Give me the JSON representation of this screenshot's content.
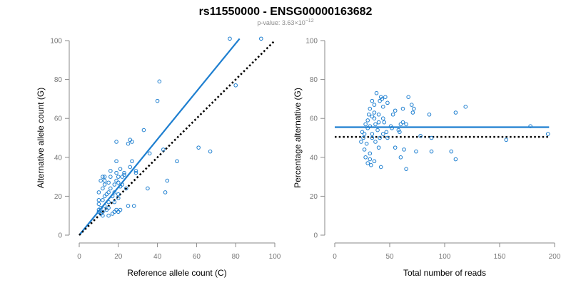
{
  "figure": {
    "title": "rs11550000 - ENSG00000163682",
    "subtitle": "p-value: 3.63×10",
    "subtitle_exponent": "−12"
  },
  "colors": {
    "series": "#1e7fd0",
    "reference_line": "#000000",
    "axis": "#8a8a8a"
  },
  "chart_data": [
    {
      "type": "scatter",
      "xlabel": "Reference allele count (C)",
      "ylabel": "Alternative allele count (G)",
      "xlim": [
        0,
        100
      ],
      "ylim": [
        0,
        100
      ],
      "xticks": [
        0,
        20,
        40,
        60,
        80,
        100
      ],
      "yticks": [
        0,
        20,
        40,
        60,
        80,
        100
      ],
      "grid": false,
      "lines": [
        {
          "style": "solid",
          "color": "#1e7fd0",
          "from": [
            0,
            0
          ],
          "to": [
            82,
            101
          ]
        },
        {
          "style": "dotted",
          "color": "#000000",
          "from": [
            0,
            0
          ],
          "to": [
            100,
            100
          ]
        }
      ],
      "points": [
        [
          77,
          101
        ],
        [
          93,
          101
        ],
        [
          41,
          79
        ],
        [
          40,
          69
        ],
        [
          80,
          77
        ],
        [
          33,
          54
        ],
        [
          26,
          49
        ],
        [
          27,
          48
        ],
        [
          25,
          47
        ],
        [
          19,
          48
        ],
        [
          61,
          45
        ],
        [
          67,
          43
        ],
        [
          43,
          44
        ],
        [
          36,
          42
        ],
        [
          50,
          38
        ],
        [
          19,
          38
        ],
        [
          27,
          38
        ],
        [
          26,
          35
        ],
        [
          29,
          33
        ],
        [
          29,
          32
        ],
        [
          21,
          34
        ],
        [
          23,
          32
        ],
        [
          23,
          31
        ],
        [
          22,
          30
        ],
        [
          19,
          32
        ],
        [
          16,
          30
        ],
        [
          20,
          30
        ],
        [
          15,
          27
        ],
        [
          19,
          28
        ],
        [
          20,
          27
        ],
        [
          45,
          28
        ],
        [
          13,
          26
        ],
        [
          18,
          26
        ],
        [
          21,
          25
        ],
        [
          22,
          26
        ],
        [
          24,
          24
        ],
        [
          35,
          24
        ],
        [
          44,
          22
        ],
        [
          12,
          24
        ],
        [
          15,
          22
        ],
        [
          18,
          22
        ],
        [
          20,
          21
        ],
        [
          10,
          22
        ],
        [
          13,
          20
        ],
        [
          17,
          20
        ],
        [
          20,
          19
        ],
        [
          12,
          18
        ],
        [
          15,
          17
        ],
        [
          18,
          17
        ],
        [
          10,
          16
        ],
        [
          13,
          15
        ],
        [
          15,
          14
        ],
        [
          11,
          14
        ],
        [
          10,
          13
        ],
        [
          12,
          12
        ],
        [
          14,
          13
        ],
        [
          10,
          12
        ],
        [
          11,
          11
        ],
        [
          12,
          10
        ],
        [
          15,
          10
        ],
        [
          17,
          11
        ],
        [
          18,
          12
        ],
        [
          19,
          13
        ],
        [
          20,
          12
        ],
        [
          21,
          13
        ],
        [
          25,
          15
        ],
        [
          28,
          15
        ],
        [
          11,
          28
        ],
        [
          13,
          28
        ],
        [
          16,
          24
        ],
        [
          14,
          21
        ],
        [
          10,
          18
        ],
        [
          12,
          30
        ],
        [
          13,
          30
        ],
        [
          16,
          33
        ]
      ]
    },
    {
      "type": "scatter",
      "xlabel": "Total number of reads",
      "ylabel": "Percentage alternative (G)",
      "xlim": [
        0,
        200
      ],
      "ylim": [
        0,
        100
      ],
      "xticks": [
        0,
        50,
        100,
        150,
        200
      ],
      "yticks": [
        0,
        20,
        40,
        60,
        80,
        100
      ],
      "grid": false,
      "lines": [
        {
          "style": "solid",
          "color": "#1e7fd0",
          "from": [
            0,
            55.5
          ],
          "to": [
            195,
            55.5
          ]
        },
        {
          "style": "dotted",
          "color": "#000000",
          "from": [
            0,
            50.5
          ],
          "to": [
            195,
            50.5
          ]
        }
      ],
      "points": [
        [
          38,
          73
        ],
        [
          42,
          71
        ],
        [
          43,
          70
        ],
        [
          41,
          69
        ],
        [
          46,
          71
        ],
        [
          67,
          71
        ],
        [
          34,
          69
        ],
        [
          36,
          67
        ],
        [
          32,
          65
        ],
        [
          48,
          68
        ],
        [
          44,
          66
        ],
        [
          70,
          67
        ],
        [
          72,
          65
        ],
        [
          71,
          63
        ],
        [
          119,
          66
        ],
        [
          36,
          63
        ],
        [
          34,
          61
        ],
        [
          31,
          62
        ],
        [
          30,
          59
        ],
        [
          40,
          62
        ],
        [
          44,
          60
        ],
        [
          53,
          62
        ],
        [
          55,
          64
        ],
        [
          62,
          65
        ],
        [
          86,
          62
        ],
        [
          110,
          63
        ],
        [
          28,
          57
        ],
        [
          32,
          56
        ],
        [
          37,
          57
        ],
        [
          40,
          58
        ],
        [
          45,
          58
        ],
        [
          51,
          56
        ],
        [
          60,
          57
        ],
        [
          62,
          58
        ],
        [
          65,
          57
        ],
        [
          58,
          54
        ],
        [
          25,
          53
        ],
        [
          27,
          52
        ],
        [
          34,
          52
        ],
        [
          39,
          54
        ],
        [
          44,
          52
        ],
        [
          47,
          53
        ],
        [
          59,
          53
        ],
        [
          24,
          48
        ],
        [
          29,
          47
        ],
        [
          34,
          50
        ],
        [
          37,
          48
        ],
        [
          41,
          50
        ],
        [
          27,
          44
        ],
        [
          32,
          42
        ],
        [
          55,
          45
        ],
        [
          63,
          44
        ],
        [
          74,
          43
        ],
        [
          28,
          40
        ],
        [
          32,
          39
        ],
        [
          36,
          38
        ],
        [
          30,
          37
        ],
        [
          33,
          36
        ],
        [
          42,
          35
        ],
        [
          65,
          34
        ],
        [
          88,
          43
        ],
        [
          106,
          43
        ],
        [
          110,
          39
        ],
        [
          88,
          50
        ],
        [
          60,
          40
        ],
        [
          78,
          51
        ],
        [
          178,
          56
        ],
        [
          194,
          52
        ],
        [
          156,
          49
        ],
        [
          30,
          55
        ],
        [
          26,
          50
        ],
        [
          40,
          45
        ],
        [
          48,
          50
        ],
        [
          52,
          55
        ],
        [
          36,
          60
        ]
      ]
    }
  ]
}
